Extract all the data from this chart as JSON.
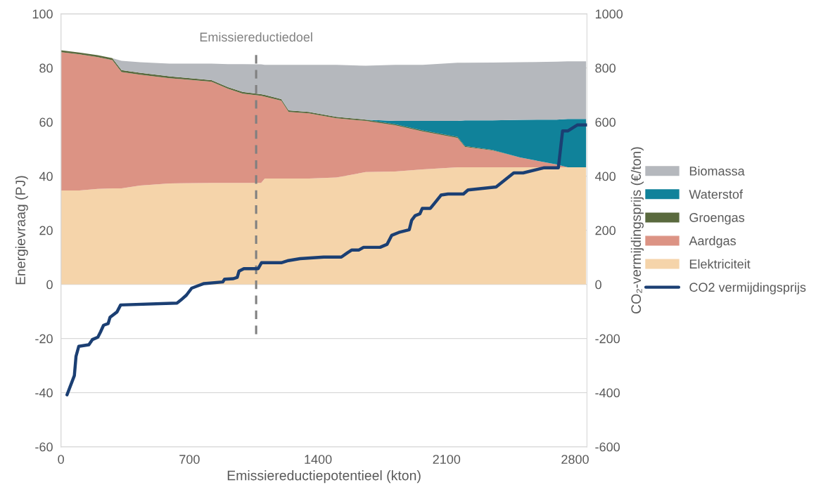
{
  "chart_data": {
    "type": "area",
    "stacked": true,
    "xlabel": "Emissiereductiepotentieel (kton)",
    "ylabel": "Energievraag (PJ)",
    "y2label": "CO₂-vermijdingsprijs (€/ton)",
    "x": [
      0,
      100,
      200,
      280,
      330,
      430,
      590,
      820,
      910,
      990,
      1090,
      1110,
      1200,
      1240,
      1350,
      1500,
      1660,
      1820,
      1970,
      2160,
      2200,
      2350,
      2500,
      2700,
      2760,
      2860
    ],
    "series": [
      {
        "name": "Elektriciteit",
        "color": "#f5d4aa",
        "values": [
          34.7,
          34.7,
          35.3,
          35.5,
          35.5,
          36.5,
          37.3,
          37.5,
          37.5,
          37.5,
          37.5,
          39.1,
          39.1,
          39.1,
          39.1,
          39.5,
          41.5,
          41.7,
          42.5,
          43.3,
          43.3,
          43.3,
          43.3,
          43.3,
          43.3,
          43.3
        ]
      },
      {
        "name": "Aardgas",
        "color": "#dc9384",
        "values": [
          51.1,
          50.3,
          48.7,
          47.4,
          43.0,
          41.0,
          38.9,
          37.4,
          34.8,
          33.0,
          32.2,
          30.3,
          28.8,
          24.6,
          24.1,
          21.9,
          18.9,
          17.1,
          14.0,
          10.8,
          7.5,
          6.2,
          3.6,
          1.0,
          0,
          0
        ]
      },
      {
        "name": "Groengas",
        "color": "#5a6a3e",
        "values": [
          0.7,
          0.7,
          0.7,
          0.7,
          0.7,
          0.7,
          0.7,
          0.6,
          0.6,
          0.6,
          0.6,
          0.6,
          0.6,
          0.6,
          0.5,
          0.5,
          0.5,
          0.4,
          0.4,
          0.4,
          0.3,
          0.2,
          0,
          0,
          0,
          0
        ]
      },
      {
        "name": "Waterstof",
        "color": "#10829a",
        "values": [
          null,
          null,
          null,
          null,
          null,
          null,
          null,
          null,
          null,
          null,
          null,
          null,
          null,
          null,
          null,
          null,
          0,
          1.2,
          3.5,
          5.9,
          9.5,
          10.9,
          13.9,
          16.6,
          17.8,
          17.8
        ]
      },
      {
        "name": "Biomassa",
        "color": "#b5b8bd",
        "values": [
          null,
          null,
          null,
          0,
          3.4,
          3.9,
          4.7,
          6.1,
          8.5,
          10.3,
          11.0,
          11.1,
          12.6,
          16.8,
          17.4,
          19.2,
          19.9,
          20.7,
          20.7,
          21.5,
          21.3,
          21.4,
          21.3,
          21.4,
          21.3,
          21.3
        ]
      },
      {
        "name": "CO2 vermijdingsprijs",
        "type": "line",
        "axis": "y2",
        "color": "#1b3f73",
        "x": [
          33,
          73,
          82,
          97,
          152,
          171,
          201,
          216,
          232,
          257,
          267,
          305,
          325,
          632,
          651,
          683,
          712,
          747,
          779,
          881,
          891,
          939,
          960,
          970,
          996,
          1074,
          1092,
          1200,
          1239,
          1302,
          1431,
          1527,
          1559,
          1584,
          1623,
          1648,
          1738,
          1776,
          1801,
          1840,
          1897,
          1910,
          1929,
          1955,
          1968,
          2012,
          2044,
          2070,
          2108,
          2192,
          2217,
          2370,
          2466,
          2517,
          2632,
          2709,
          2732,
          2760,
          2812,
          2863
        ],
        "values": [
          -408,
          -337,
          -266,
          -229,
          -223,
          -204,
          -195,
          -175,
          -151,
          -145,
          -122,
          -102,
          -76,
          -69,
          -59,
          -40,
          -14,
          -5,
          3,
          9,
          19,
          21,
          26,
          49,
          58,
          58,
          80,
          80,
          88,
          95,
          101,
          101,
          116,
          127,
          127,
          137,
          137,
          148,
          181,
          192,
          202,
          237,
          254,
          261,
          281,
          281,
          308,
          330,
          334,
          334,
          349,
          360,
          412,
          412,
          431,
          431,
          567,
          567,
          589,
          589
        ]
      }
    ],
    "xlim": [
      0,
      2865
    ],
    "xticks": [
      0,
      700,
      1400,
      2100,
      2800
    ],
    "ylim": [
      -60,
      100
    ],
    "yticks": [
      -60,
      -40,
      -20,
      0,
      20,
      40,
      60,
      80,
      100
    ],
    "y2lim": [
      -600,
      1000
    ],
    "y2ticks": [
      -600,
      -400,
      -200,
      0,
      200,
      400,
      600,
      800,
      1000
    ],
    "ref_lines": [
      {
        "axis": "x",
        "value": 1063,
        "label": "Emissiereductiedoel",
        "color": "#808080",
        "line_style": "dashed"
      }
    ],
    "grid": "y",
    "legend": "right"
  }
}
